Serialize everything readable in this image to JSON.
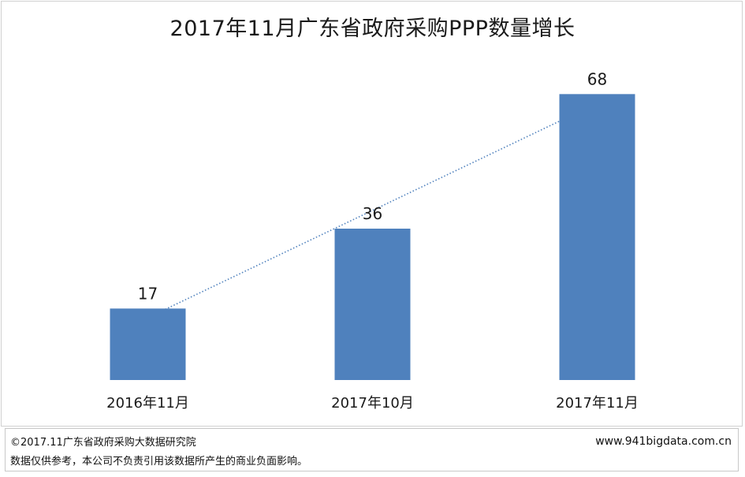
{
  "chart_data": {
    "type": "bar",
    "title": "2017年11月广东省政府采购PPP数量增长",
    "categories": [
      "2016年11月",
      "2017年10月",
      "2017年11月"
    ],
    "values": [
      17,
      36,
      68
    ],
    "ylim": [
      0,
      75
    ],
    "grid": false,
    "trendline": "dotted-linear",
    "colors": {
      "bar": "#4f81bd",
      "trend": "#4f81bd"
    }
  },
  "footer": {
    "copyright": "©2017.11广东省政府采购大数据研究院",
    "disclaimer": "数据仅供参考，本公司不负责引用该数据所产生的商业负面影响。",
    "website": "www.941bigdata.com.cn"
  }
}
